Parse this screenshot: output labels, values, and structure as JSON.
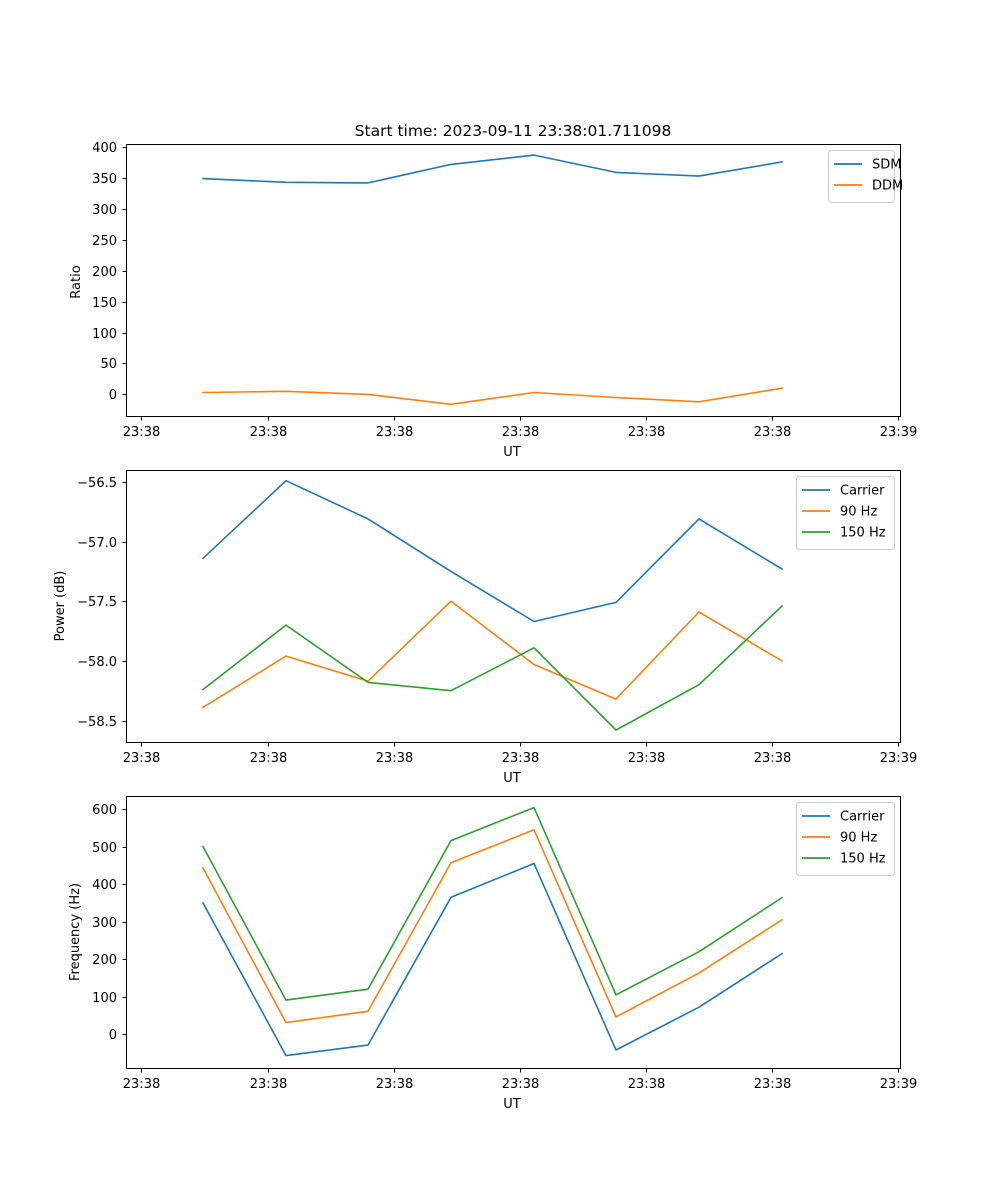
{
  "chart_data": [
    {
      "type": "line",
      "title": "Start time: 2023-09-11 23:38:01.711098",
      "xlabel": "UT",
      "ylabel": "Ratio",
      "x_tick_labels": [
        "23:38",
        "23:38",
        "23:38",
        "23:38",
        "23:38",
        "23:38",
        "23:38"
      ],
      "x_last_tick_label": "23:39",
      "ylim": [
        -35,
        405
      ],
      "yticks": [
        0,
        50,
        100,
        150,
        200,
        250,
        300,
        350,
        400
      ],
      "ytick_labels": [
        "0",
        "50",
        "100",
        "150",
        "200",
        "250",
        "300",
        "350",
        "400"
      ],
      "legend_position": "top-right",
      "series": [
        {
          "name": "SDM",
          "color": "#1f77b4",
          "values": [
            349,
            343,
            342,
            372,
            387,
            359,
            353,
            376
          ]
        },
        {
          "name": "DDM",
          "color": "#ff7f0e",
          "values": [
            3,
            5,
            0,
            -16,
            3,
            -5,
            -12,
            10
          ]
        }
      ]
    },
    {
      "type": "line",
      "title": "",
      "xlabel": "UT",
      "ylabel": "Power (dB)",
      "x_tick_labels": [
        "23:38",
        "23:38",
        "23:38",
        "23:38",
        "23:38",
        "23:38",
        "23:38"
      ],
      "x_last_tick_label": "23:39",
      "ylim": [
        -58.68,
        -56.4
      ],
      "yticks": [
        -58.5,
        -58.0,
        -57.5,
        -57.0,
        -56.5
      ],
      "ytick_labels": [
        "−58.5",
        "−58.0",
        "−57.5",
        "−57.0",
        "−56.5"
      ],
      "legend_position": "top-right",
      "series": [
        {
          "name": "Carrier",
          "color": "#1f77b4",
          "values": [
            -57.14,
            -56.49,
            -56.81,
            -57.25,
            -57.67,
            -57.51,
            -56.81,
            -57.23
          ]
        },
        {
          "name": "90 Hz",
          "color": "#ff7f0e",
          "values": [
            -58.39,
            -57.96,
            -58.17,
            -57.5,
            -58.03,
            -58.32,
            -57.59,
            -58.0
          ]
        },
        {
          "name": "150 Hz",
          "color": "#2ca02c",
          "values": [
            -58.24,
            -57.7,
            -58.18,
            -58.25,
            -57.89,
            -58.58,
            -58.2,
            -57.54
          ]
        }
      ]
    },
    {
      "type": "line",
      "title": "",
      "xlabel": "UT",
      "ylabel": "Frequency (Hz)",
      "x_tick_labels": [
        "23:38",
        "23:38",
        "23:38",
        "23:38",
        "23:38",
        "23:38",
        "23:38"
      ],
      "x_last_tick_label": "23:39",
      "ylim": [
        -90,
        635
      ],
      "yticks": [
        0,
        100,
        200,
        300,
        400,
        500,
        600
      ],
      "ytick_labels": [
        "0",
        "100",
        "200",
        "300",
        "400",
        "500",
        "600"
      ],
      "legend_position": "top-right",
      "series": [
        {
          "name": "Carrier",
          "color": "#1f77b4",
          "values": [
            350,
            -57,
            -29,
            365,
            455,
            -42,
            72,
            215
          ]
        },
        {
          "name": "90 Hz",
          "color": "#ff7f0e",
          "values": [
            443,
            31,
            61,
            457,
            545,
            46,
            163,
            305
          ]
        },
        {
          "name": "150 Hz",
          "color": "#2ca02c",
          "values": [
            500,
            91,
            120,
            516,
            604,
            105,
            220,
            364
          ]
        }
      ]
    }
  ]
}
